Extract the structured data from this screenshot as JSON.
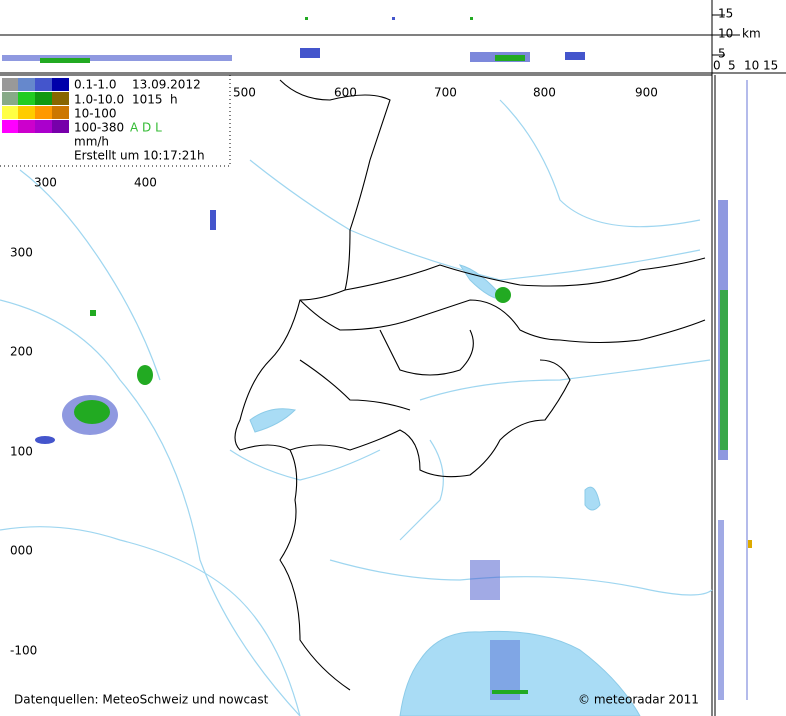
{
  "height_scale": {
    "labels": [
      "15",
      "10",
      "5"
    ],
    "unit": "km",
    "bottom_labels": [
      "0",
      "5",
      "10",
      "15"
    ]
  },
  "legend": {
    "rows": [
      "0.1-1.0",
      "1.0-10.0",
      "10-100",
      "100-380"
    ],
    "date": "13.09.2012",
    "pressure": "1015",
    "hour_unit": "h",
    "sources": "A D L",
    "unit": "mm/h",
    "created": "Erstellt um 10:17:21h"
  },
  "map": {
    "x_labels": [
      "500",
      "600",
      "700",
      "800",
      "900"
    ],
    "inner_x_labels": [
      "300",
      "400"
    ],
    "y_labels": [
      "300",
      "200",
      "100",
      "000",
      "-100"
    ]
  },
  "footer": {
    "sources": "Datenquellen: MeteoSchweiz und nowcast",
    "copyright": "© meteoradar 2011"
  }
}
